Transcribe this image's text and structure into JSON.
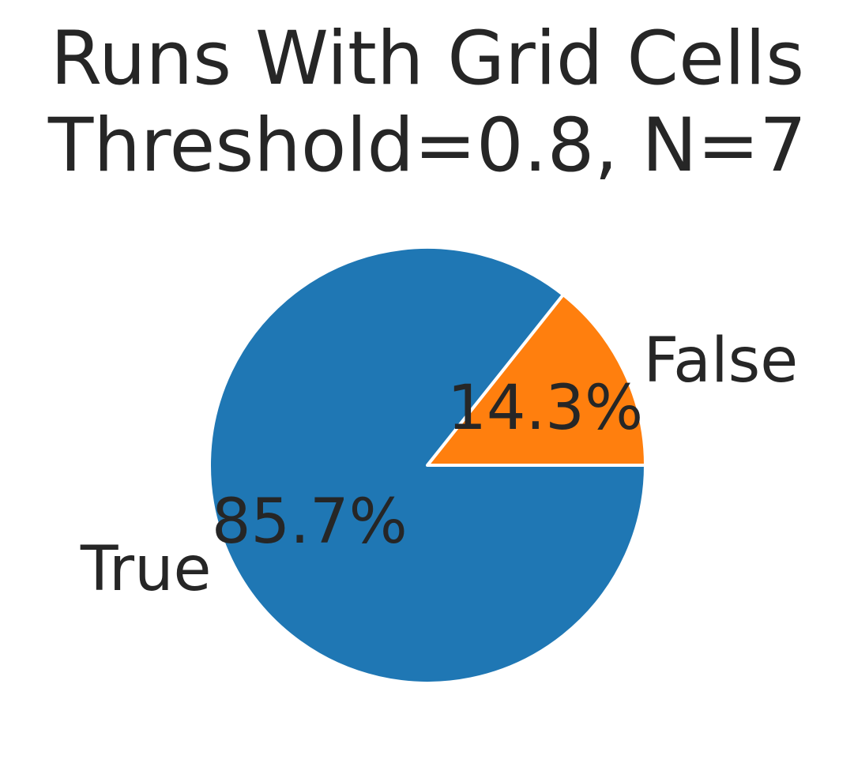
{
  "chart_data": {
    "type": "pie",
    "title_lines": [
      "Runs With Grid Cells",
      "Threshold=0.8, N=7"
    ],
    "start_angle_deg": 0,
    "direction": "counterclockwise",
    "slices": [
      {
        "label": "False",
        "value": 14.3,
        "pct_label": "14.3%",
        "color": "#ff7f0e"
      },
      {
        "label": "True",
        "value": 85.7,
        "pct_label": "85.7%",
        "color": "#1f77b4"
      }
    ]
  }
}
